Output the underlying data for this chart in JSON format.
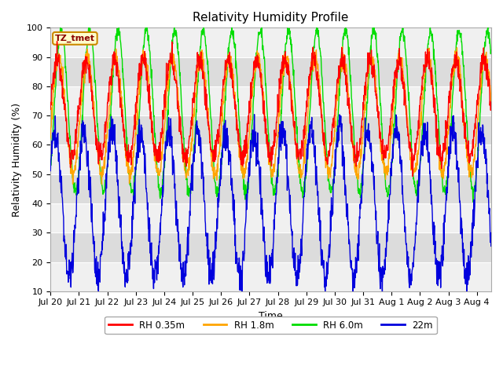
{
  "title": "Relativity Humidity Profile",
  "xlabel": "Time",
  "ylabel": "Relativity Humidity (%)",
  "ylim": [
    10,
    100
  ],
  "yticks": [
    10,
    20,
    30,
    40,
    50,
    60,
    70,
    80,
    90,
    100
  ],
  "x_labels": [
    "Jul 20",
    "Jul 21",
    "Jul 22",
    "Jul 23",
    "Jul 24",
    "Jul 25",
    "Jul 26",
    "Jul 27",
    "Jul 28",
    "Jul 29",
    "Jul 30",
    "Jul 31",
    "Aug 1",
    "Aug 2",
    "Aug 3",
    "Aug 4"
  ],
  "colors": {
    "rh035": "#ff0000",
    "rh18": "#ffa500",
    "rh60": "#00dd00",
    "rh22m": "#0000dd"
  },
  "legend_labels": [
    "RH 0.35m",
    "RH 1.8m",
    "RH 6.0m",
    "22m"
  ],
  "annotation_text": "TZ_tmet",
  "annotation_bg": "#ffffcc",
  "annotation_border": "#cc8800",
  "fig_bg": "#ffffff",
  "plot_bg_light": "#f0f0f0",
  "plot_bg_dark": "#dcdcdc",
  "grid_color": "#ffffff",
  "title_fontsize": 11,
  "axis_label_fontsize": 9,
  "tick_fontsize": 8,
  "linewidth": 1.0
}
